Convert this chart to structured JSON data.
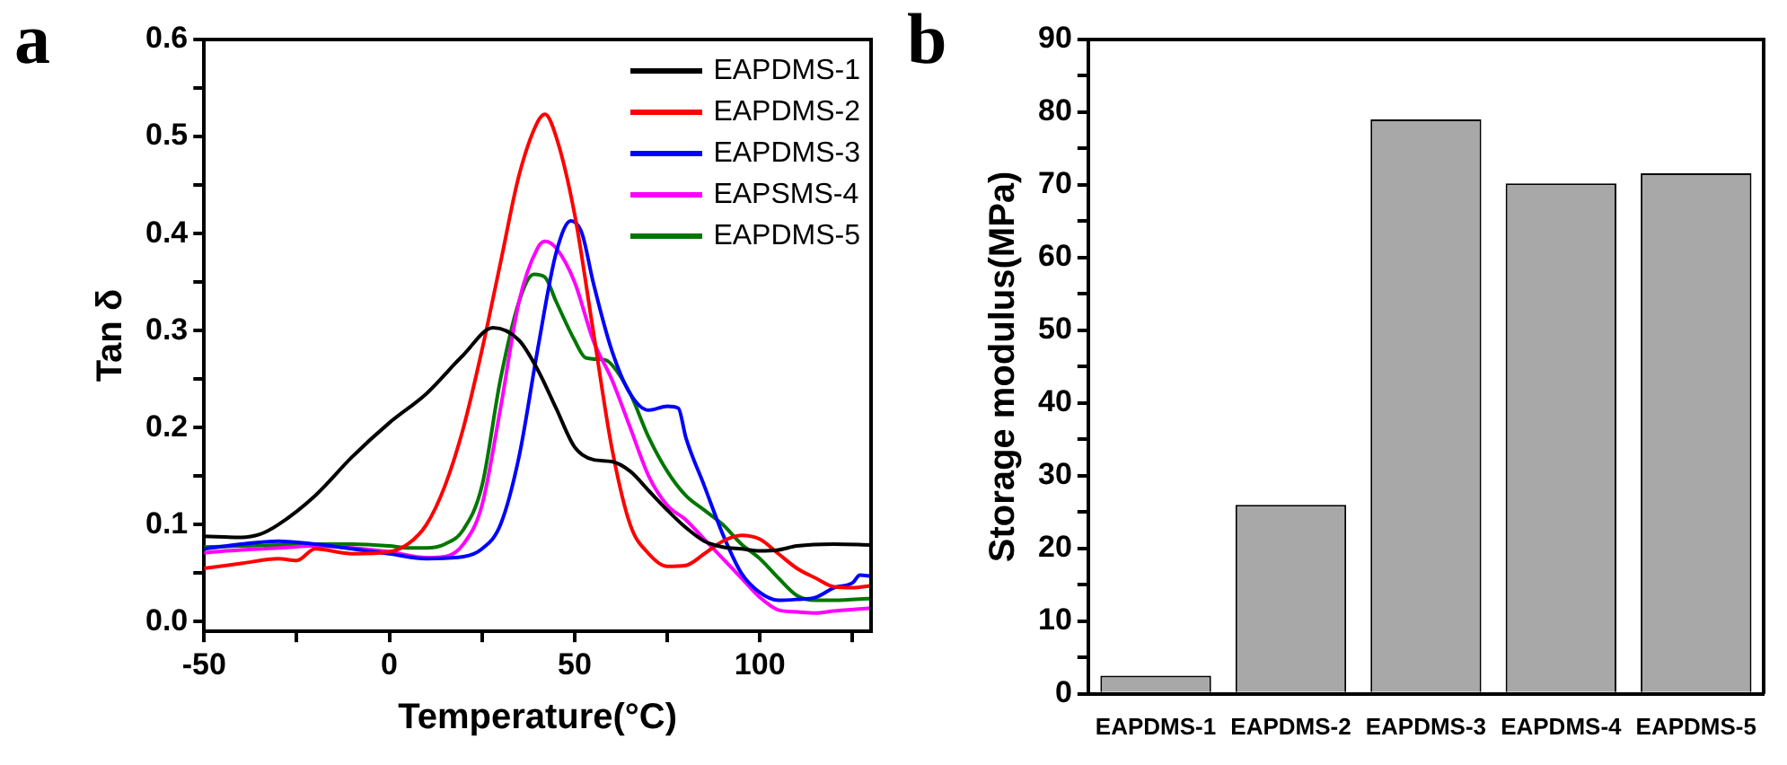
{
  "chart_data": [
    {
      "type": "line",
      "title": "a",
      "xlabel": "Temperature(°C)",
      "ylabel": "Tan δ",
      "xlim": [
        -50,
        130
      ],
      "xticks": [
        -50,
        {
          "value": -25,
          "label": null
        },
        0,
        {
          "value": 25,
          "label": null
        },
        50,
        {
          "value": 75,
          "label": null
        },
        100,
        {
          "value": 125,
          "label": null
        }
      ],
      "ylim": [
        -0.01,
        0.6
      ],
      "yticks": [
        {
          "value": 0,
          "label": "0.0"
        },
        {
          "value": 0.05,
          "label": null
        },
        0.1,
        {
          "value": 0.15,
          "label": null
        },
        0.2,
        {
          "value": 0.25,
          "label": null
        },
        0.3,
        {
          "value": 0.35,
          "label": null
        },
        0.4,
        {
          "value": 0.45,
          "label": null
        },
        0.5,
        {
          "value": 0.55,
          "label": null
        },
        0.6
      ],
      "grid": false,
      "legend": "top right",
      "marker": "none",
      "line_style": "solid",
      "series": [
        {
          "name": "EAPDMS-1",
          "color": "#000000",
          "x": [
            -50,
            -40,
            -35,
            -30,
            -20,
            -10,
            0,
            10,
            20,
            28,
            35,
            40,
            45,
            50,
            55,
            60,
            65,
            70,
            75,
            80,
            85,
            90,
            95,
            100,
            105,
            110,
            120,
            130
          ],
          "values": [
            0.088,
            0.087,
            0.09,
            0.1,
            0.13,
            0.17,
            0.205,
            0.235,
            0.275,
            0.303,
            0.29,
            0.26,
            0.22,
            0.18,
            0.167,
            0.165,
            0.155,
            0.135,
            0.115,
            0.097,
            0.083,
            0.077,
            0.075,
            0.073,
            0.074,
            0.078,
            0.08,
            0.079
          ]
        },
        {
          "name": "EAPDMS-2",
          "color": "#ff0000",
          "x": [
            -50,
            -40,
            -30,
            -25,
            -20,
            -10,
            0,
            5,
            10,
            15,
            20,
            25,
            30,
            35,
            40,
            42,
            45,
            50,
            55,
            60,
            65,
            70,
            75,
            80,
            85,
            90,
            95,
            100,
            105,
            110,
            115,
            120,
            125,
            130
          ],
          "values": [
            0.055,
            0.06,
            0.065,
            0.063,
            0.075,
            0.07,
            0.072,
            0.08,
            0.1,
            0.14,
            0.2,
            0.28,
            0.37,
            0.46,
            0.515,
            0.523,
            0.5,
            0.42,
            0.3,
            0.18,
            0.1,
            0.07,
            0.057,
            0.058,
            0.07,
            0.083,
            0.089,
            0.085,
            0.07,
            0.055,
            0.045,
            0.036,
            0.035,
            0.037
          ]
        },
        {
          "name": "EAPDMS-3",
          "color": "#0000ff",
          "x": [
            -50,
            -40,
            -30,
            -20,
            -10,
            0,
            10,
            20,
            25,
            30,
            35,
            40,
            45,
            49,
            52,
            55,
            60,
            65,
            70,
            75,
            78,
            80,
            85,
            90,
            95,
            100,
            105,
            110,
            115,
            120,
            125,
            127,
            130
          ],
          "values": [
            0.075,
            0.08,
            0.083,
            0.08,
            0.075,
            0.07,
            0.065,
            0.067,
            0.075,
            0.1,
            0.17,
            0.28,
            0.38,
            0.413,
            0.4,
            0.35,
            0.28,
            0.235,
            0.218,
            0.222,
            0.22,
            0.19,
            0.14,
            0.09,
            0.05,
            0.03,
            0.022,
            0.023,
            0.025,
            0.035,
            0.04,
            0.048,
            0.047
          ]
        },
        {
          "name": "EAPSMS-4",
          "color": "#ff00ff",
          "x": [
            -50,
            -40,
            -30,
            -20,
            -10,
            0,
            10,
            15,
            20,
            25,
            30,
            35,
            40,
            42,
            45,
            50,
            55,
            60,
            65,
            70,
            75,
            80,
            85,
            90,
            95,
            100,
            105,
            110,
            115,
            120,
            130
          ],
          "values": [
            0.071,
            0.074,
            0.076,
            0.078,
            0.076,
            0.072,
            0.066,
            0.067,
            0.08,
            0.12,
            0.22,
            0.33,
            0.385,
            0.392,
            0.385,
            0.35,
            0.29,
            0.25,
            0.2,
            0.15,
            0.12,
            0.105,
            0.085,
            0.065,
            0.045,
            0.025,
            0.012,
            0.01,
            0.009,
            0.011,
            0.014
          ]
        },
        {
          "name": "EAPDMS-5",
          "color": "#007700",
          "x": [
            -50,
            -40,
            -30,
            -20,
            -10,
            0,
            5,
            10,
            15,
            20,
            25,
            30,
            35,
            39,
            42,
            45,
            50,
            53,
            58,
            60,
            65,
            70,
            75,
            80,
            85,
            90,
            95,
            100,
            105,
            110,
            115,
            120,
            130
          ],
          "values": [
            0.077,
            0.078,
            0.079,
            0.08,
            0.08,
            0.078,
            0.076,
            0.076,
            0.08,
            0.095,
            0.14,
            0.25,
            0.33,
            0.358,
            0.355,
            0.33,
            0.29,
            0.272,
            0.27,
            0.265,
            0.235,
            0.19,
            0.155,
            0.13,
            0.115,
            0.1,
            0.08,
            0.065,
            0.045,
            0.027,
            0.022,
            0.022,
            0.024
          ]
        }
      ]
    },
    {
      "type": "bar",
      "title": "b",
      "ylabel": "Storage modulus(MPa)",
      "categories": [
        "EAPDMS-1",
        "EAPDMS-2",
        "EAPDMS-3",
        "EAPDMS-4",
        "EAPDMS-5"
      ],
      "values": [
        2.5,
        26,
        79,
        70.2,
        71.6
      ],
      "color": "#a8a8a8",
      "ylim": [
        0,
        90
      ],
      "yticks": [
        0,
        {
          "value": 5,
          "label": null
        },
        10,
        {
          "value": 15,
          "label": null
        },
        20,
        {
          "value": 25,
          "label": null
        },
        30,
        {
          "value": 35,
          "label": null
        },
        40,
        {
          "value": 45,
          "label": null
        },
        50,
        {
          "value": 55,
          "label": null
        },
        60,
        {
          "value": 65,
          "label": null
        },
        70,
        {
          "value": 75,
          "label": null
        },
        80,
        {
          "value": 85,
          "label": null
        },
        90
      ],
      "grid": false,
      "legend": false
    }
  ]
}
